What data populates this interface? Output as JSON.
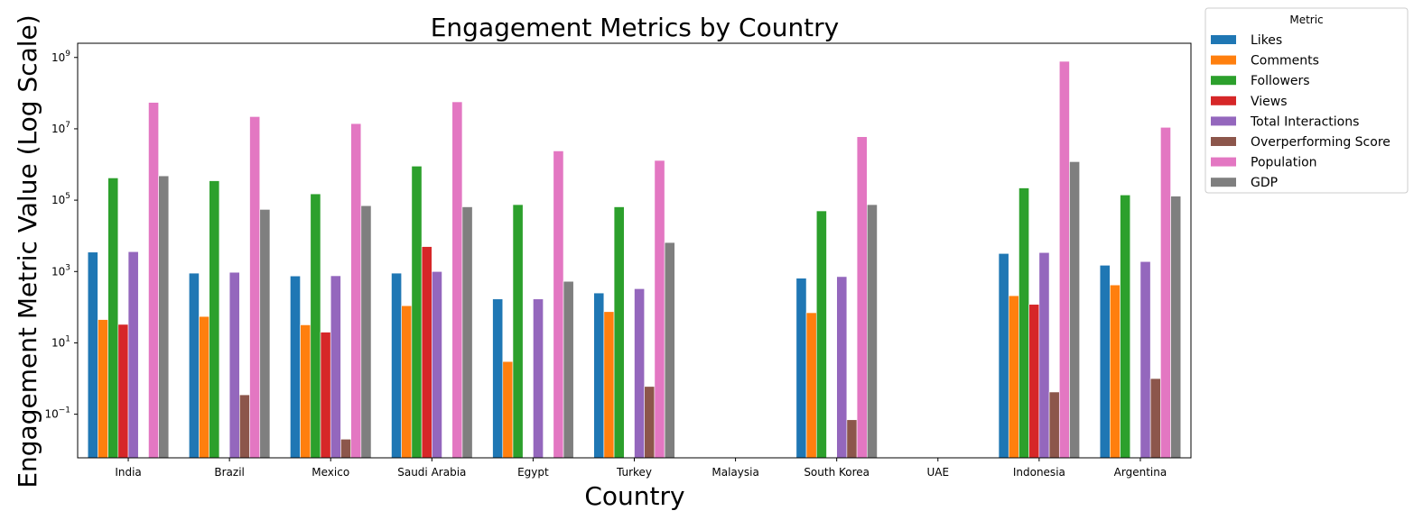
{
  "chart_data": {
    "type": "bar",
    "title": "Engagement Metrics by Country",
    "xlabel": "Country",
    "ylabel": "Engagement Metric Value (Log Scale)",
    "yscale": "log",
    "ylim": [
      0.006,
      2500000000.0
    ],
    "yticks": [
      {
        "value": 0.1,
        "mant": "10",
        "exp": "−1"
      },
      {
        "value": 10,
        "mant": "10",
        "exp": "1"
      },
      {
        "value": 1000,
        "mant": "10",
        "exp": "3"
      },
      {
        "value": 100000,
        "mant": "10",
        "exp": "5"
      },
      {
        "value": 10000000,
        "mant": "10",
        "exp": "7"
      },
      {
        "value": 1000000000,
        "mant": "10",
        "exp": "9"
      }
    ],
    "grid": false,
    "legend_title": "Metric",
    "legend_position": "outside-top-right",
    "categories": [
      "India",
      "Brazil",
      "Mexico",
      "Saudi Arabia",
      "Egypt",
      "Turkey",
      "Malaysia",
      "South Korea",
      "UAE",
      "Indonesia",
      "Argentina"
    ],
    "series": [
      {
        "name": "Likes",
        "color": "#1f77b4",
        "values": [
          3500,
          900,
          750,
          900,
          170,
          250,
          null,
          650,
          null,
          3200,
          1500
        ]
      },
      {
        "name": "Comments",
        "color": "#ff7f0e",
        "values": [
          45,
          55,
          32,
          110,
          3,
          75,
          null,
          70,
          null,
          210,
          420
        ]
      },
      {
        "name": "Followers",
        "color": "#2ca02c",
        "values": [
          420000,
          350000,
          150000,
          900000,
          75000,
          65000,
          null,
          50000,
          null,
          220000,
          140000
        ]
      },
      {
        "name": "Views",
        "color": "#d62728",
        "values": [
          33,
          null,
          20,
          5000,
          null,
          null,
          null,
          null,
          null,
          120,
          null
        ]
      },
      {
        "name": "Total Interactions",
        "color": "#9467bd",
        "values": [
          3600,
          950,
          760,
          1000,
          170,
          330,
          null,
          720,
          null,
          3400,
          1900
        ]
      },
      {
        "name": "Overperforming Score",
        "color": "#8c564b",
        "values": [
          null,
          0.35,
          0.02,
          null,
          null,
          0.6,
          null,
          0.07,
          null,
          0.42,
          1.0
        ]
      },
      {
        "name": "Population",
        "color": "#e377c2",
        "values": [
          55000000,
          22000000,
          14000000,
          57000000,
          2400000,
          1300000,
          null,
          6000000,
          null,
          780000000,
          11000000
        ]
      },
      {
        "name": "GDP",
        "color": "#7f7f7f",
        "values": [
          480000,
          55000,
          70000,
          65000,
          530,
          6500,
          null,
          75000,
          null,
          1200000,
          130000
        ]
      }
    ]
  }
}
